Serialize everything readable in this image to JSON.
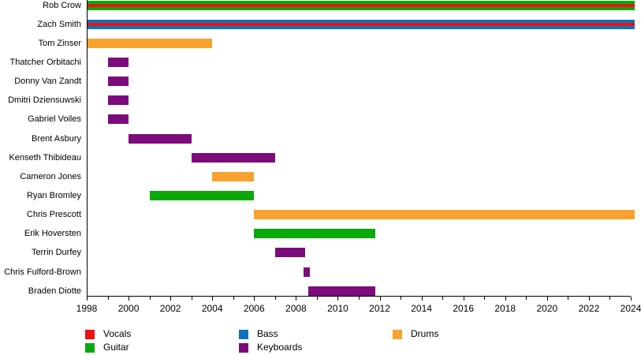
{
  "chart_data": {
    "type": "bar",
    "variant": "gantt-band-member-timeline",
    "title": "",
    "xlabel": "",
    "ylabel": "",
    "x_axis": {
      "min": 1998,
      "max": 2024,
      "major_tick_step": 2,
      "minor_tick_step": 1,
      "tick_labels": [
        "1998",
        "2000",
        "2002",
        "2004",
        "2006",
        "2008",
        "2010",
        "2012",
        "2014",
        "2016",
        "2018",
        "2020",
        "2022",
        "2024"
      ]
    },
    "grid": false,
    "legend_position": "bottom",
    "legend": [
      "Vocals",
      "Guitar",
      "Bass",
      "Keyboards",
      "Drums"
    ],
    "colors": {
      "Vocals": "#ee1111",
      "Guitar": "#0aa80a",
      "Bass": "#0e72bc",
      "Keyboards": "#7c0c7c",
      "Drums": "#f9a22e"
    },
    "members": [
      {
        "name": "Rob Crow",
        "segments": [
          {
            "start": 1998,
            "end": 2024.2,
            "stripes": [
              "Guitar",
              "Vocals",
              "Guitar"
            ]
          }
        ]
      },
      {
        "name": "Zach Smith",
        "segments": [
          {
            "start": 1998,
            "end": 2024.2,
            "stripes": [
              "Bass",
              "Vocals",
              "Bass"
            ]
          }
        ]
      },
      {
        "name": "Tom Zinser",
        "segments": [
          {
            "start": 1998,
            "end": 2004,
            "stripes": [
              "Drums"
            ]
          }
        ]
      },
      {
        "name": "Thatcher Orbitachi",
        "segments": [
          {
            "start": 1999,
            "end": 2000,
            "stripes": [
              "Keyboards"
            ]
          }
        ]
      },
      {
        "name": "Donny Van Zandt",
        "segments": [
          {
            "start": 1999,
            "end": 2000,
            "stripes": [
              "Keyboards"
            ]
          }
        ]
      },
      {
        "name": "Dmitri Dziensuwski",
        "segments": [
          {
            "start": 1999,
            "end": 2000,
            "stripes": [
              "Keyboards"
            ]
          }
        ]
      },
      {
        "name": "Gabriel Voiles",
        "segments": [
          {
            "start": 1999,
            "end": 2000,
            "stripes": [
              "Keyboards"
            ]
          }
        ]
      },
      {
        "name": "Brent Asbury",
        "segments": [
          {
            "start": 2000,
            "end": 2003,
            "stripes": [
              "Keyboards"
            ]
          }
        ]
      },
      {
        "name": "Kenseth Thibideau",
        "segments": [
          {
            "start": 2003,
            "end": 2007,
            "stripes": [
              "Keyboards"
            ]
          }
        ]
      },
      {
        "name": "Cameron Jones",
        "segments": [
          {
            "start": 2004,
            "end": 2006,
            "stripes": [
              "Drums"
            ]
          }
        ]
      },
      {
        "name": "Ryan Bromley",
        "segments": [
          {
            "start": 2001,
            "end": 2006,
            "stripes": [
              "Guitar"
            ]
          }
        ]
      },
      {
        "name": "Chris Prescott",
        "segments": [
          {
            "start": 2006,
            "end": 2024.2,
            "stripes": [
              "Drums"
            ]
          }
        ]
      },
      {
        "name": "Erik Hoversten",
        "segments": [
          {
            "start": 2006,
            "end": 2011.8,
            "stripes": [
              "Guitar"
            ]
          }
        ]
      },
      {
        "name": "Terrin Durfey",
        "segments": [
          {
            "start": 2007,
            "end": 2008.45,
            "stripes": [
              "Keyboards"
            ]
          }
        ]
      },
      {
        "name": "Chris Fulford-Brown",
        "segments": [
          {
            "start": 2008.35,
            "end": 2008.65,
            "stripes": [
              "Keyboards"
            ]
          }
        ]
      },
      {
        "name": "Braden Diotte",
        "segments": [
          {
            "start": 2008.6,
            "end": 2011.8,
            "stripes": [
              "Keyboards"
            ]
          }
        ]
      }
    ]
  }
}
